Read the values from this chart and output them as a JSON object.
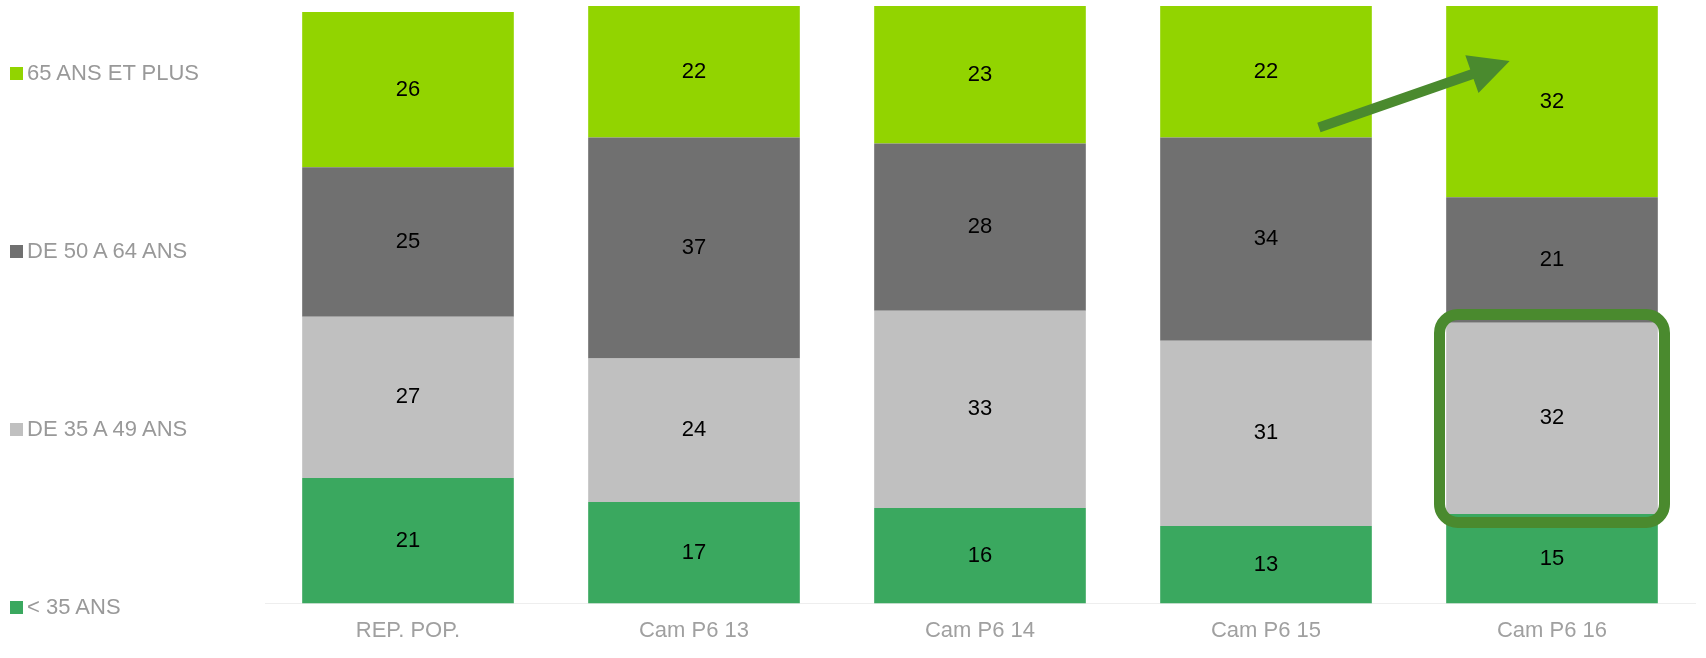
{
  "chart_data": {
    "type": "bar",
    "stacked": true,
    "data_labels": true,
    "legend": "left",
    "grid": false,
    "categories": [
      "REP. POP.",
      "Cam P6 13",
      "Cam P6 14",
      "Cam P6 15",
      "Cam P6 16"
    ],
    "series": [
      {
        "name": "< 35 ANS",
        "color": "#3aa85f",
        "values": [
          21,
          17,
          16,
          13,
          15
        ]
      },
      {
        "name": "DE 35 A 49 ANS",
        "color": "#c0c0c0",
        "values": [
          27,
          24,
          33,
          31,
          32
        ]
      },
      {
        "name": "DE 50 A 64 ANS",
        "color": "#707070",
        "values": [
          25,
          37,
          28,
          34,
          21
        ]
      },
      {
        "name": "65 ANS ET PLUS",
        "color": "#92d400",
        "values": [
          26,
          22,
          23,
          22,
          32
        ]
      }
    ]
  }
}
